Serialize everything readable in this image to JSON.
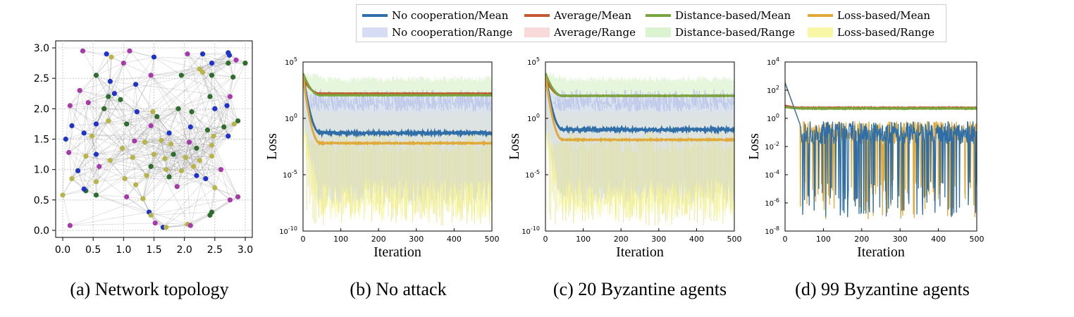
{
  "captions": {
    "a": "(a) Network topology",
    "b": "(b) No attack",
    "c": "(c) 20 Byzantine agents",
    "d": "(d) 99 Byzantine agents"
  },
  "legend": {
    "items": [
      {
        "label": "No cooperation/Mean",
        "kind": "line",
        "color": "#2f6ea6"
      },
      {
        "label": "Average/Mean",
        "kind": "line",
        "color": "#c45a31"
      },
      {
        "label": "Distance-based/Mean",
        "kind": "line",
        "color": "#79a53e"
      },
      {
        "label": "Loss-based/Mean",
        "kind": "line",
        "color": "#e0aa3b"
      },
      {
        "label": "No cooperation/Range",
        "kind": "band",
        "color": "#d6dcf3"
      },
      {
        "label": "Average/Range",
        "kind": "band",
        "color": "#f8dada"
      },
      {
        "label": "Distance-based/Range",
        "kind": "band",
        "color": "#dcf3d2"
      },
      {
        "label": "Loss-based/Range",
        "kind": "band",
        "color": "#f8f7a6"
      }
    ]
  },
  "chart_data": [
    {
      "type": "scatter",
      "xlim": [
        0,
        3
      ],
      "ylim": [
        0,
        3
      ],
      "xticks": [
        "0.0",
        "0.5",
        "1.0",
        "1.5",
        "2.0",
        "2.5",
        "3.0"
      ],
      "yticks": [
        "0.0",
        "0.5",
        "1.0",
        "1.5",
        "2.0",
        "2.5",
        "3.0"
      ],
      "grid": true,
      "node_colors": {
        "blue": "#1f33c8",
        "green": "#2e6d2e",
        "purple": "#a63aaa",
        "olive": "#b8b44c"
      },
      "nodes": [
        [
          0.33,
          2.95,
          "purple"
        ],
        [
          0.72,
          2.9,
          "blue"
        ],
        [
          0.8,
          2.85,
          "olive"
        ],
        [
          1.1,
          2.95,
          "purple"
        ],
        [
          1.5,
          2.85,
          "blue"
        ],
        [
          2.05,
          2.9,
          "purple"
        ],
        [
          2.3,
          2.9,
          "blue"
        ],
        [
          2.72,
          2.92,
          "blue"
        ],
        [
          2.74,
          2.88,
          "blue"
        ],
        [
          3.0,
          2.75,
          "green"
        ],
        [
          2.85,
          2.8,
          "purple"
        ],
        [
          2.72,
          2.75,
          "green"
        ],
        [
          2.25,
          2.65,
          "olive"
        ],
        [
          2.3,
          2.6,
          "olive"
        ],
        [
          1.95,
          2.55,
          "green"
        ],
        [
          1.45,
          2.55,
          "purple"
        ],
        [
          1.0,
          2.75,
          "purple"
        ],
        [
          0.78,
          2.45,
          "blue"
        ],
        [
          0.85,
          2.25,
          "blue"
        ],
        [
          0.75,
          2.2,
          "green"
        ],
        [
          0.95,
          2.15,
          "green"
        ],
        [
          1.2,
          2.4,
          "blue"
        ],
        [
          0.28,
          2.3,
          "purple"
        ],
        [
          0.55,
          2.55,
          "green"
        ],
        [
          2.45,
          2.55,
          "green"
        ],
        [
          2.45,
          2.75,
          "blue"
        ],
        [
          2.8,
          2.52,
          "green"
        ],
        [
          2.75,
          2.2,
          "purple"
        ],
        [
          2.42,
          2.2,
          "green"
        ],
        [
          2.7,
          2.05,
          "blue"
        ],
        [
          0.12,
          2.05,
          "purple"
        ],
        [
          0.42,
          2.1,
          "purple"
        ],
        [
          0.68,
          2.0,
          "green"
        ],
        [
          1.22,
          1.95,
          "blue"
        ],
        [
          1.48,
          1.95,
          "olive"
        ],
        [
          1.55,
          1.87,
          "green"
        ],
        [
          1.9,
          2.0,
          "green"
        ],
        [
          2.12,
          1.95,
          "green"
        ],
        [
          2.5,
          2.0,
          "blue"
        ],
        [
          2.88,
          1.8,
          "green"
        ],
        [
          2.82,
          1.75,
          "olive"
        ],
        [
          2.65,
          1.7,
          "green"
        ],
        [
          2.72,
          1.55,
          "blue"
        ],
        [
          0.15,
          1.72,
          "blue"
        ],
        [
          0.35,
          1.6,
          "blue"
        ],
        [
          0.55,
          1.75,
          "blue"
        ],
        [
          0.75,
          1.8,
          "olive"
        ],
        [
          1.05,
          1.75,
          "green"
        ],
        [
          1.45,
          1.72,
          "purple"
        ],
        [
          1.75,
          1.6,
          "blue"
        ],
        [
          2.1,
          1.7,
          "blue"
        ],
        [
          2.38,
          1.65,
          "green"
        ],
        [
          2.48,
          1.55,
          "olive"
        ],
        [
          0.05,
          1.5,
          "blue"
        ],
        [
          0.48,
          1.55,
          "olive"
        ],
        [
          0.98,
          1.35,
          "olive"
        ],
        [
          1.18,
          1.47,
          "purple"
        ],
        [
          1.35,
          1.45,
          "olive"
        ],
        [
          1.62,
          1.48,
          "olive"
        ],
        [
          1.78,
          1.42,
          "olive"
        ],
        [
          2.08,
          1.45,
          "purple"
        ],
        [
          2.2,
          1.35,
          "green"
        ],
        [
          2.45,
          1.4,
          "olive"
        ],
        [
          0.1,
          1.28,
          "purple"
        ],
        [
          0.38,
          1.22,
          "olive"
        ],
        [
          0.55,
          1.25,
          "blue"
        ],
        [
          0.78,
          1.15,
          "olive"
        ],
        [
          1.15,
          1.2,
          "olive"
        ],
        [
          1.5,
          1.25,
          "olive"
        ],
        [
          1.68,
          1.18,
          "olive"
        ],
        [
          1.82,
          1.25,
          "green"
        ],
        [
          2.02,
          1.2,
          "olive"
        ],
        [
          2.25,
          1.15,
          "olive"
        ],
        [
          2.45,
          1.22,
          "olive"
        ],
        [
          1.7,
          1.0,
          "olive"
        ],
        [
          0.25,
          0.98,
          "blue"
        ],
        [
          0.6,
          1.05,
          "purple"
        ],
        [
          1.02,
          0.85,
          "olive"
        ],
        [
          1.45,
          1.05,
          "green"
        ],
        [
          1.75,
          0.88,
          "green"
        ],
        [
          1.95,
          0.98,
          "olive"
        ],
        [
          2.15,
          1.05,
          "olive"
        ],
        [
          2.6,
          1.0,
          "purple"
        ],
        [
          0.15,
          0.85,
          "olive"
        ],
        [
          0.55,
          0.8,
          "olive"
        ],
        [
          1.2,
          0.75,
          "olive"
        ],
        [
          1.38,
          0.9,
          "olive"
        ],
        [
          1.88,
          0.72,
          "purple"
        ],
        [
          2.2,
          0.9,
          "blue"
        ],
        [
          2.5,
          0.7,
          "olive"
        ],
        [
          2.35,
          0.85,
          "blue"
        ],
        [
          0.38,
          0.65,
          "green"
        ],
        [
          0.55,
          0.58,
          "green"
        ],
        [
          1.05,
          0.55,
          "purple"
        ],
        [
          1.32,
          0.52,
          "olive"
        ],
        [
          2.75,
          0.5,
          "purple"
        ],
        [
          2.88,
          0.55,
          "purple"
        ],
        [
          0.0,
          0.58,
          "olive"
        ],
        [
          1.42,
          0.3,
          "blue"
        ],
        [
          1.45,
          0.25,
          "olive"
        ],
        [
          1.52,
          0.12,
          "purple"
        ],
        [
          1.65,
          0.05,
          "blue"
        ],
        [
          1.7,
          0.05,
          "olive"
        ],
        [
          2.05,
          0.1,
          "olive"
        ],
        [
          2.1,
          0.08,
          "purple"
        ],
        [
          2.42,
          0.25,
          "green"
        ],
        [
          2.45,
          0.3,
          "green"
        ],
        [
          0.12,
          0.08,
          "purple"
        ],
        [
          0.35,
          0.68,
          "blue"
        ]
      ]
    },
    {
      "type": "line",
      "title": "",
      "xlabel": "Iteration",
      "ylabel": "Loss",
      "xlim": [
        0,
        500
      ],
      "ylim_log10": [
        -10,
        5
      ],
      "yscale": "log",
      "xticks": [
        0,
        100,
        200,
        300,
        400,
        500
      ],
      "yticks_exp": [
        -10,
        -5,
        0,
        5
      ],
      "series": [
        {
          "name": "No cooperation/Mean",
          "start_log10": 4.0,
          "plateau_log10": -1.3,
          "noise": 0.22
        },
        {
          "name": "Average/Mean",
          "start_log10": 3.5,
          "plateau_log10": 2.2,
          "noise": 0.04
        },
        {
          "name": "Distance-based/Mean",
          "start_log10": 4.0,
          "plateau_log10": 2.05,
          "noise": 0.04
        },
        {
          "name": "Loss-based/Mean",
          "start_log10": 3.8,
          "plateau_log10": -2.2,
          "noise": 0.08
        }
      ],
      "bands": [
        {
          "name": "Distance-based/Range",
          "lo_log10": -6.5,
          "hi_log10": 3.5
        },
        {
          "name": "Loss-based/Range",
          "lo_log10": -8.5,
          "hi_log10": 0.5
        },
        {
          "name": "No cooperation/Range",
          "lo_log10": -7.0,
          "hi_log10": 2.0
        }
      ]
    },
    {
      "type": "line",
      "title": "",
      "xlabel": "Iteration",
      "ylabel": "Loss",
      "xlim": [
        0,
        500
      ],
      "ylim_log10": [
        -10,
        5
      ],
      "yscale": "log",
      "xticks": [
        0,
        100,
        200,
        300,
        400,
        500
      ],
      "yticks_exp": [
        -10,
        -5,
        0,
        5
      ],
      "series": [
        {
          "name": "No cooperation/Mean",
          "start_log10": 4.0,
          "plateau_log10": -1.0,
          "noise": 0.22
        },
        {
          "name": "Average/Mean",
          "start_log10": 3.5,
          "plateau_log10": 2.0,
          "noise": 0.04
        },
        {
          "name": "Distance-based/Mean",
          "start_log10": 4.0,
          "plateau_log10": 2.0,
          "noise": 0.04
        },
        {
          "name": "Loss-based/Mean",
          "start_log10": 3.8,
          "plateau_log10": -1.9,
          "noise": 0.08
        }
      ],
      "bands": [
        {
          "name": "Distance-based/Range",
          "lo_log10": -6.5,
          "hi_log10": 3.5
        },
        {
          "name": "Loss-based/Range",
          "lo_log10": -8.5,
          "hi_log10": 0.5
        },
        {
          "name": "No cooperation/Range",
          "lo_log10": -7.0,
          "hi_log10": 2.0
        }
      ]
    },
    {
      "type": "line",
      "title": "",
      "xlabel": "Iteration",
      "ylabel": "Loss",
      "xlim": [
        0,
        500
      ],
      "ylim_log10": [
        -8,
        4
      ],
      "yscale": "log",
      "xticks": [
        0,
        100,
        200,
        300,
        400,
        500
      ],
      "yticks_exp": [
        -8,
        -6,
        -4,
        -2,
        0,
        2,
        4
      ],
      "series": [
        {
          "name": "Average/Mean",
          "start_log10": 0.9,
          "plateau_log10": 0.75,
          "noise": 0.05
        },
        {
          "name": "Distance-based/Mean",
          "start_log10": 0.8,
          "plateau_log10": 0.7,
          "noise": 0.05
        },
        {
          "name": "Loss-based/Mean",
          "start_log10": 2.6,
          "plateau_log10": -2.0,
          "noise": 1.3
        },
        {
          "name": "No cooperation/Mean",
          "start_log10": 2.5,
          "plateau_log10": -2.0,
          "noise": 1.3
        }
      ],
      "bands": []
    }
  ]
}
